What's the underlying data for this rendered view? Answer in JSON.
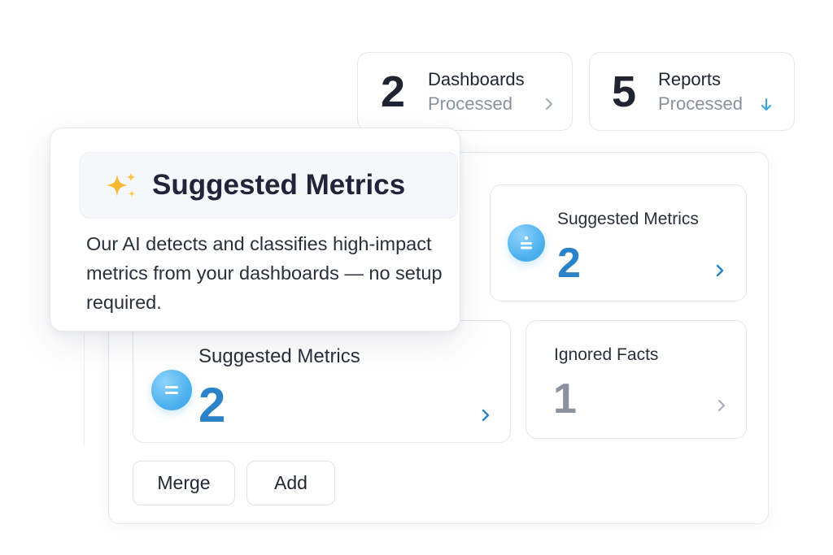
{
  "stats": {
    "dashboards": {
      "value": "2",
      "title": "Dashboards",
      "subtitle": "Processed"
    },
    "reports": {
      "value": "5",
      "title": "Reports",
      "subtitle": "Processed"
    }
  },
  "metrics": {
    "suggested_top": {
      "title": "Suggested Metrics",
      "value": "2"
    },
    "suggested_main": {
      "title": "Suggested Metrics",
      "value": "2"
    },
    "ignored": {
      "title": "Ignored Facts",
      "value": "1"
    }
  },
  "actions": {
    "merge_label": "Merge",
    "add_label": "Add"
  },
  "popover": {
    "title": "Suggested Metrics",
    "icon": "sparkles-icon",
    "body": "Our AI detects and classifies high-impact metrics from your dashboards — no setup required."
  },
  "colors": {
    "accent_blue": "#2a82c9",
    "bubble_blue": "#4fb2ef",
    "muted_gray": "#8c929d",
    "sparkle_gold": "#f5b82e"
  }
}
